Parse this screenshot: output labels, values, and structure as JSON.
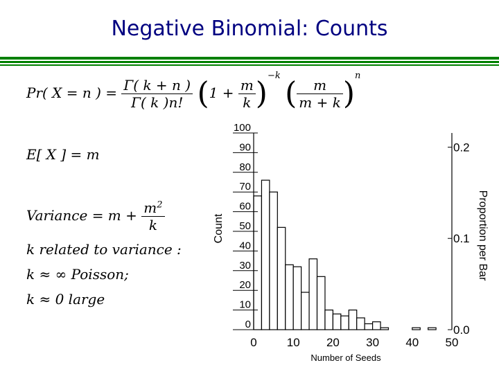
{
  "slide": {
    "title": "Negative Binomial: Counts"
  },
  "formulas": {
    "pmf": {
      "lhs": "Pr( X = n ) =",
      "gamma_num": "Γ( k + n )",
      "gamma_den": "Γ( k )n!",
      "one_plus": "1 +",
      "m": "m",
      "k": "k",
      "exp_neg_k": "−k",
      "m_plus_k": "m + k",
      "exp_n": "n"
    },
    "expectation": "E[ X ] = m",
    "variance": {
      "lhs": "Variance = m +",
      "num": "m",
      "num_exp": "2",
      "den": "k"
    },
    "notes": [
      "k related to variance :",
      "k ≈ ∞ Poisson;",
      "k ≈ 0 large"
    ]
  },
  "chart_data": {
    "type": "bar",
    "title": "",
    "xlabel": "Number of Seeds",
    "ylabel": "Count",
    "y2label": "Proportion per Bar",
    "bin_width": 2,
    "bins_start": [
      0,
      2,
      4,
      6,
      8,
      10,
      12,
      14,
      16,
      18,
      20,
      22,
      24,
      26,
      28,
      30,
      32,
      34,
      36,
      38,
      40,
      42,
      44,
      46,
      48
    ],
    "values": [
      68,
      76,
      70,
      52,
      33,
      32,
      19,
      36,
      27,
      10,
      8,
      7,
      10,
      6,
      3,
      4,
      1,
      0,
      0,
      0,
      1,
      0,
      1,
      0,
      0
    ],
    "xlim": [
      0,
      50
    ],
    "ylim": [
      0,
      100
    ],
    "xticks": [
      "0",
      "10",
      "20",
      "30",
      "40",
      "50"
    ],
    "yticks": [
      "0",
      "10",
      "20",
      "30",
      "40",
      "50",
      "60",
      "70",
      "80",
      "90",
      "100"
    ],
    "y2ticks": [
      "0.0",
      "0.1",
      "0.2"
    ],
    "grid": false,
    "bar_fill": "#ffffff",
    "bar_stroke": "#000000"
  }
}
